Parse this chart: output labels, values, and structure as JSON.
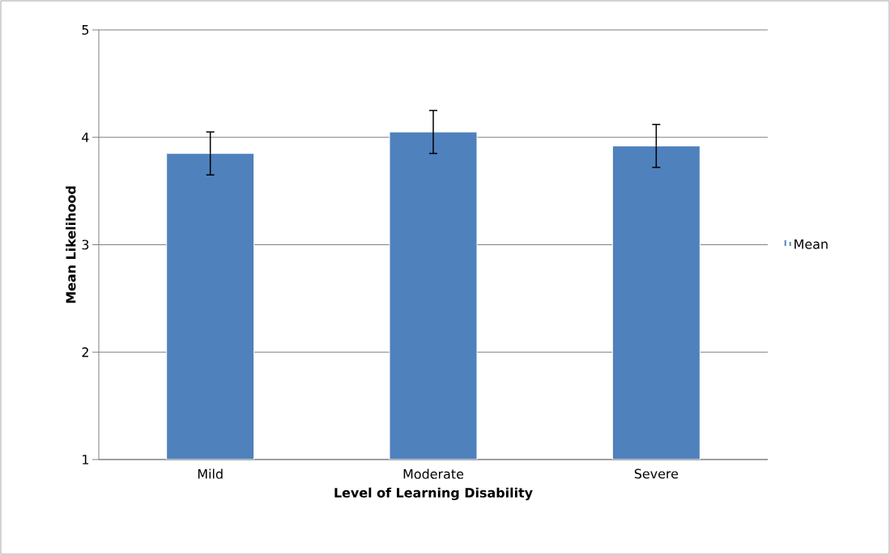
{
  "chart_data": {
    "type": "bar",
    "xlabel": "Level of Learning Disability",
    "ylabel": "Mean Likelihood",
    "categories": [
      "Mild",
      "Moderate",
      "Severe"
    ],
    "series": [
      {
        "name": "Mean",
        "color": "#4f81bd",
        "values": [
          3.85,
          4.05,
          3.92
        ],
        "errors": [
          0.2,
          0.2,
          0.2
        ]
      }
    ],
    "ylim": [
      1,
      5
    ],
    "yticks": [
      1,
      2,
      3,
      4,
      5
    ],
    "grid": "y",
    "legend": "right"
  }
}
